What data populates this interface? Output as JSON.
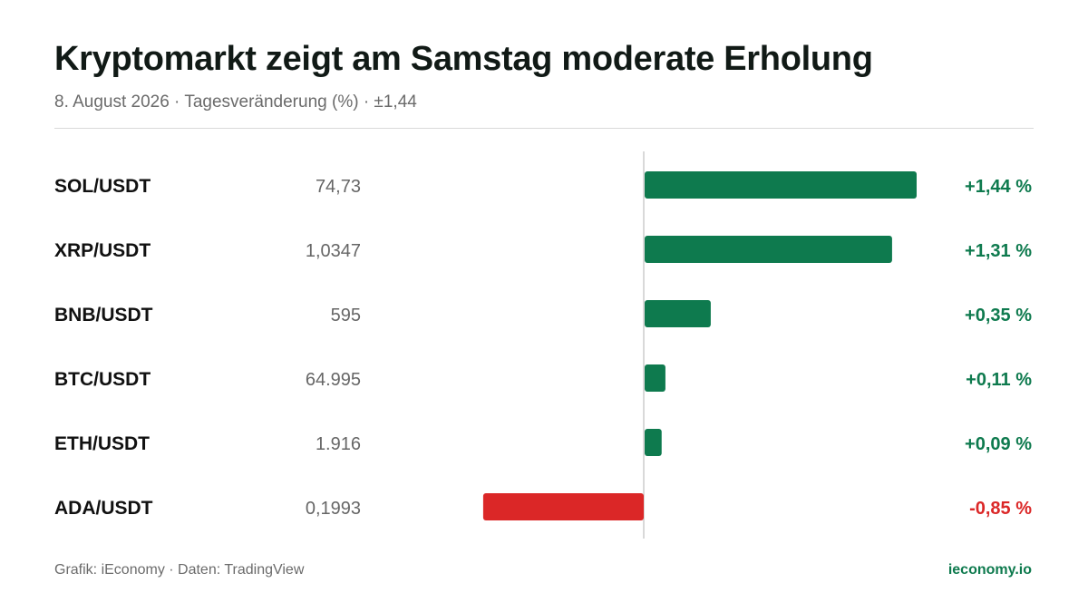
{
  "header": {
    "title": "Kryptomarkt zeigt am Samstag moderate Erholung",
    "subtitle": "8. August 2026 · Tagesveränderung (%) · ±1,44"
  },
  "footer": {
    "source": "Grafik: iEconomy · Daten: TradingView",
    "brand": "ieconomy.io"
  },
  "colors": {
    "positive": "#0e7a4e",
    "negative": "#db2727",
    "pair_text": "#111111",
    "price_text": "#666666",
    "zero_line": "#d9d9d9"
  },
  "chart_data": {
    "type": "bar",
    "orientation": "horizontal",
    "categories": [
      "SOL/USDT",
      "XRP/USDT",
      "BNB/USDT",
      "BTC/USDT",
      "ETH/USDT",
      "ADA/USDT"
    ],
    "prices": [
      "74,73",
      "1,0347",
      "595",
      "64.995",
      "1.916",
      "0,1993"
    ],
    "values": [
      1.44,
      1.31,
      0.35,
      0.11,
      0.09,
      -0.85
    ],
    "value_labels": [
      "+1,44 %",
      "+1,31 %",
      "+0,35 %",
      "+0,11 %",
      "+0,09 %",
      "-0,85 %"
    ],
    "xlim": [
      -1.44,
      1.44
    ],
    "grid": false
  }
}
